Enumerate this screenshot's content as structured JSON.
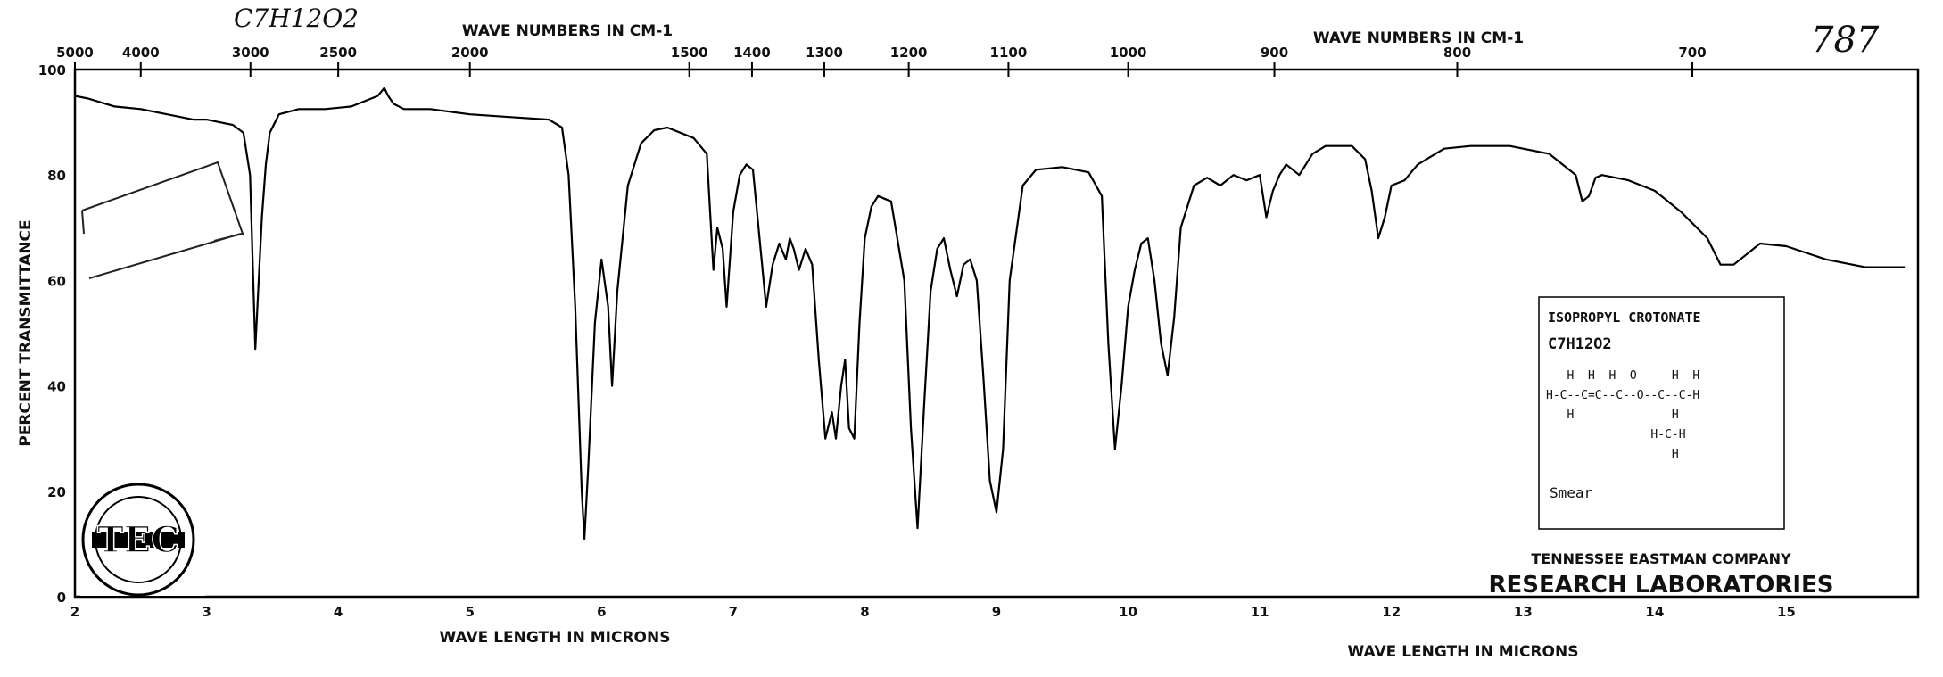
{
  "chart_data": {
    "type": "line",
    "handwritten_formula": "C7H12O2",
    "spectrum_number": "787",
    "top_axis_left_title": "WAVE NUMBERS IN CM-1",
    "top_axis_right_title": "WAVE NUMBERS IN CM-1",
    "bottom_axis_left_title": "WAVE LENGTH IN MICRONS",
    "bottom_axis_right_title": "WAVE LENGTH IN MICRONS",
    "ylabel": "PERCENT TRANSMITTANCE",
    "xlim": [
      2,
      16
    ],
    "ylim": [
      0,
      100
    ],
    "x_ticks": [
      2,
      3,
      4,
      5,
      6,
      7,
      8,
      9,
      10,
      11,
      12,
      13,
      14,
      15
    ],
    "y_ticks": [
      0,
      20,
      40,
      60,
      80,
      100
    ],
    "wavenumber_ticks": [
      {
        "label": "5000",
        "value": 5000
      },
      {
        "label": "4000",
        "value": 4000
      },
      {
        "label": "3000",
        "value": 3000
      },
      {
        "label": "2500",
        "value": 2500
      },
      {
        "label": "2000",
        "value": 2000
      },
      {
        "label": "1500",
        "value": 1500
      },
      {
        "label": "1400",
        "value": 1400
      },
      {
        "label": "1300",
        "value": 1300
      },
      {
        "label": "1200",
        "value": 1200
      },
      {
        "label": "1100",
        "value": 1100
      },
      {
        "label": "1000",
        "value": 1000
      },
      {
        "label": "900",
        "value": 900
      },
      {
        "label": "800",
        "value": 800
      },
      {
        "label": "700",
        "value": 700
      }
    ],
    "series": [
      {
        "x": [
          2.0,
          2.1,
          2.3,
          2.5,
          2.7,
          2.9,
          3.0,
          3.1,
          3.2,
          3.28,
          3.33,
          3.37,
          3.4,
          3.42,
          3.45,
          3.48,
          3.55,
          3.7,
          3.9,
          4.1,
          4.3,
          4.35,
          4.38,
          4.42,
          4.5,
          4.7,
          5.0,
          5.3,
          5.6,
          5.7,
          5.75,
          5.8,
          5.85,
          5.87,
          5.9,
          5.95,
          6.0,
          6.05,
          6.08,
          6.12,
          6.2,
          6.3,
          6.4,
          6.5,
          6.6,
          6.7,
          6.8,
          6.85,
          6.88,
          6.92,
          6.95,
          7.0,
          7.05,
          7.1,
          7.15,
          7.2,
          7.25,
          7.3,
          7.35,
          7.4,
          7.43,
          7.46,
          7.5,
          7.55,
          7.6,
          7.65,
          7.7,
          7.75,
          7.78,
          7.82,
          7.85,
          7.88,
          7.92,
          7.96,
          8.0,
          8.05,
          8.1,
          8.2,
          8.3,
          8.35,
          8.4,
          8.45,
          8.5,
          8.55,
          8.6,
          8.65,
          8.7,
          8.75,
          8.8,
          8.85,
          8.9,
          8.95,
          9.0,
          9.05,
          9.1,
          9.2,
          9.3,
          9.5,
          9.7,
          9.8,
          9.85,
          9.9,
          9.95,
          10.0,
          10.05,
          10.1,
          10.15,
          10.2,
          10.25,
          10.3,
          10.35,
          10.4,
          10.5,
          10.6,
          10.7,
          10.8,
          10.9,
          11.0,
          11.05,
          11.1,
          11.15,
          11.2,
          11.3,
          11.4,
          11.5,
          11.7,
          11.8,
          11.85,
          11.9,
          11.95,
          12.0,
          12.1,
          12.2,
          12.4,
          12.6,
          12.9,
          13.2,
          13.4,
          13.45,
          13.5,
          13.55,
          13.6,
          13.8,
          14.0,
          14.2,
          14.4,
          14.5,
          14.6,
          14.7,
          14.8,
          15.0,
          15.3,
          15.6,
          15.9
        ],
        "values": [
          95,
          94.5,
          93,
          92.5,
          91.5,
          90.5,
          90.5,
          90,
          89.5,
          88,
          80,
          47,
          62,
          72,
          82,
          88,
          91.5,
          92.5,
          92.5,
          93,
          95,
          96.5,
          95,
          93.5,
          92.5,
          92.5,
          91.5,
          91,
          90.5,
          89,
          80,
          55,
          20,
          11,
          25,
          52,
          64,
          55,
          40,
          58,
          78,
          86,
          88.5,
          89,
          88,
          87,
          84,
          62,
          70,
          66,
          55,
          73,
          80,
          82,
          81,
          68,
          55,
          63,
          67,
          64,
          68,
          66,
          62,
          66,
          63,
          45,
          30,
          35,
          30,
          40,
          45,
          32,
          30,
          52,
          68,
          74,
          76,
          75,
          60,
          32,
          13,
          36,
          58,
          66,
          68,
          62,
          57,
          63,
          64,
          60,
          42,
          22,
          16,
          28,
          60,
          78,
          81,
          81.5,
          80.5,
          76,
          48,
          28,
          40,
          55,
          62,
          67,
          68,
          60,
          48,
          42,
          53,
          70,
          78,
          79.5,
          78,
          80,
          79,
          80,
          72,
          77,
          80,
          82,
          80,
          84,
          85.5,
          85.5,
          83,
          77,
          68,
          72,
          78,
          79,
          82,
          85,
          85.5,
          85.5,
          84,
          80,
          75,
          76,
          79.5,
          80,
          79,
          77,
          73,
          68,
          63,
          63,
          65,
          67,
          66.5,
          64,
          62.5,
          62.5
        ]
      }
    ],
    "annotation": {
      "compound": "ISOPROPYL CROTONATE",
      "formula": "C7H12O2",
      "structure_lines": [
        "   H  H  H  O     H  H",
        "H-C--C=C--C--O--C--C-H",
        "   H              H",
        "               H-C-H",
        "                  H"
      ],
      "sample_state": "Smear"
    },
    "company": "TENNESSEE EASTMAN COMPANY",
    "laboratory": "RESEARCH LABORATORIES",
    "logo_text": "TEC"
  }
}
